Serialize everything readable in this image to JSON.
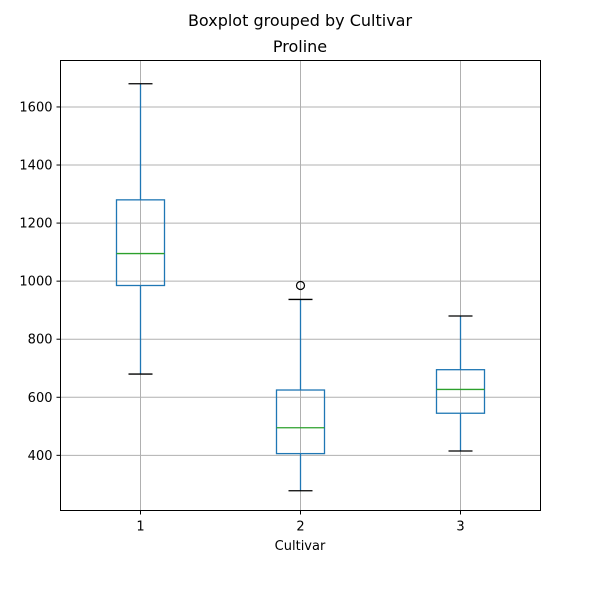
{
  "figure": {
    "suptitle": "Boxplot grouped by Cultivar",
    "title": "Proline",
    "xlabel": "Cultivar"
  },
  "chart_data": {
    "type": "box",
    "title": "Proline",
    "suptitle": "Boxplot grouped by Cultivar",
    "xlabel": "Cultivar",
    "ylabel": "",
    "categories": [
      "1",
      "2",
      "3"
    ],
    "ylim": [
      210,
      1760
    ],
    "yticks": [
      400,
      600,
      800,
      1000,
      1200,
      1400,
      1600
    ],
    "grid": true,
    "boxes": [
      {
        "category": "1",
        "whisker_low": 680,
        "q1": 985,
        "median": 1095,
        "q3": 1280,
        "whisker_high": 1680,
        "outliers": []
      },
      {
        "category": "2",
        "whisker_low": 278,
        "q1": 406,
        "median": 495,
        "q3": 625,
        "whisker_high": 937,
        "outliers": [
          985
        ]
      },
      {
        "category": "3",
        "whisker_low": 415,
        "q1": 545,
        "median": 627,
        "q3": 695,
        "whisker_high": 880,
        "outliers": []
      }
    ],
    "colors": {
      "box": "#1f77b4",
      "median": "#2ca02c",
      "whisker": "#1f77b4",
      "cap": "#000000",
      "grid": "#b0b0b0",
      "outlier": "#000000"
    }
  }
}
